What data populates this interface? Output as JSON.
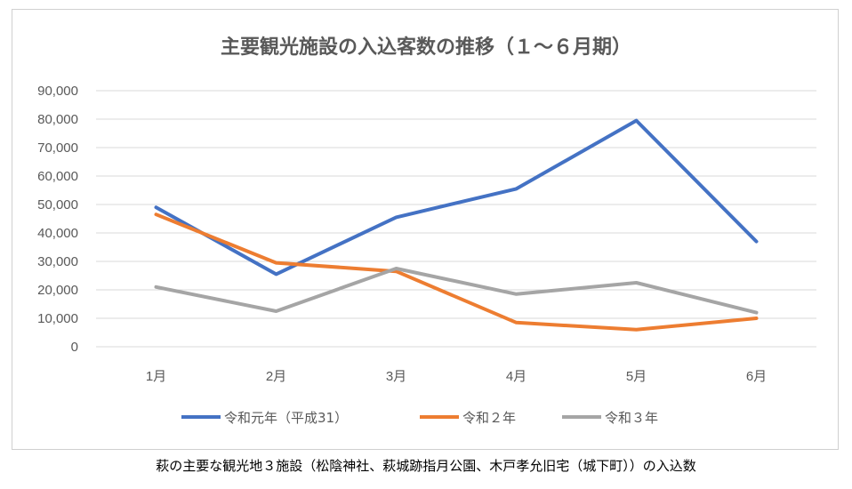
{
  "caption": "萩の主要な観光地３施設（松陰神社、萩城跡指月公園、木戸孝允旧宅（城下町））の入込数",
  "chart_data": {
    "type": "line",
    "title": "主要観光施設の入込客数の推移（１～６月期）",
    "xlabel": "",
    "ylabel": "",
    "categories": [
      "1月",
      "2月",
      "3月",
      "4月",
      "5月",
      "6月"
    ],
    "ylim": [
      0,
      90000
    ],
    "yticks": [
      0,
      10000,
      20000,
      30000,
      40000,
      50000,
      60000,
      70000,
      80000,
      90000
    ],
    "ytick_labels": [
      "0",
      "10,000",
      "20,000",
      "30,000",
      "40,000",
      "50,000",
      "60,000",
      "70,000",
      "80,000",
      "90,000"
    ],
    "grid": true,
    "legend_position": "bottom",
    "series": [
      {
        "name": "令和元年（平成31）",
        "color": "#4472C4",
        "values": [
          49000,
          25500,
          45500,
          55500,
          79500,
          37000
        ]
      },
      {
        "name": "令和２年",
        "color": "#ED7D31",
        "values": [
          46500,
          29500,
          26500,
          8500,
          6000,
          10000
        ]
      },
      {
        "name": "令和３年",
        "color": "#A5A5A5",
        "values": [
          21000,
          12500,
          27500,
          18500,
          22500,
          12000
        ]
      }
    ]
  }
}
